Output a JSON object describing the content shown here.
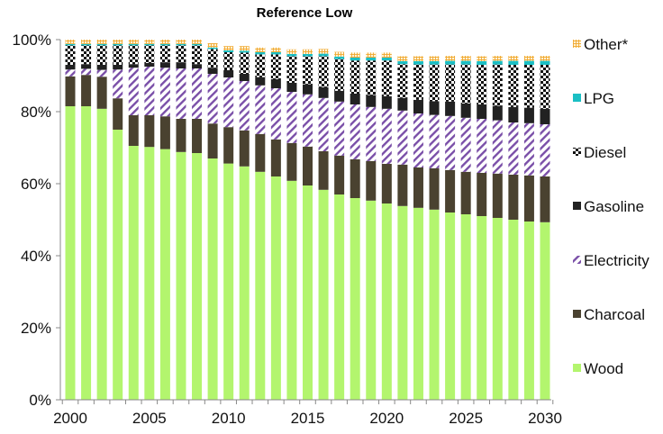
{
  "chart_data": {
    "type": "bar",
    "stacked": true,
    "title": "Reference Low",
    "xlabel": "",
    "ylabel": "",
    "ylim": [
      0,
      100
    ],
    "y_ticks": [
      "0%",
      "20%",
      "40%",
      "60%",
      "80%",
      "100%"
    ],
    "x_tick_labels": [
      "2000",
      "2005",
      "2010",
      "2015",
      "2020",
      "2025",
      "2030"
    ],
    "legend_position": "right",
    "categories": [
      "2000",
      "2001",
      "2002",
      "2003",
      "2004",
      "2005",
      "2006",
      "2007",
      "2008",
      "2009",
      "2010",
      "2011",
      "2012",
      "2013",
      "2014",
      "2015",
      "2016",
      "2017",
      "2018",
      "2019",
      "2020",
      "2021",
      "2022",
      "2023",
      "2024",
      "2025",
      "2026",
      "2027",
      "2028",
      "2029",
      "2030"
    ],
    "series": [
      {
        "name": "Wood",
        "color": "#b3f56e",
        "pattern": "solid",
        "values": [
          81.5,
          81.5,
          80.8,
          75.0,
          70.5,
          70.2,
          69.6,
          68.8,
          68.5,
          67.0,
          65.6,
          64.8,
          63.3,
          62.0,
          60.8,
          59.5,
          58.3,
          57.0,
          56.0,
          55.3,
          54.5,
          53.8,
          53.3,
          52.8,
          52.0,
          51.5,
          51.0,
          50.5,
          50.0,
          49.5,
          49.3
        ]
      },
      {
        "name": "Charcoal",
        "color": "#4a4230",
        "pattern": "solid",
        "values": [
          8.3,
          8.7,
          8.9,
          8.7,
          8.5,
          8.8,
          9.1,
          9.2,
          9.5,
          9.7,
          10.1,
          10.0,
          10.5,
          10.3,
          10.5,
          10.8,
          10.7,
          10.8,
          10.8,
          11.0,
          11.0,
          11.5,
          11.2,
          11.5,
          11.8,
          11.8,
          12.0,
          12.3,
          12.5,
          12.8,
          12.7
        ]
      },
      {
        "name": "Electricity",
        "color": "#7a4fa8",
        "pattern": "hatch",
        "values": [
          1.9,
          1.7,
          1.9,
          8.0,
          13.2,
          13.5,
          13.5,
          14.0,
          14.0,
          13.8,
          13.8,
          13.7,
          13.5,
          14.2,
          14.2,
          14.5,
          14.8,
          15.0,
          15.2,
          15.0,
          15.3,
          15.0,
          15.0,
          14.8,
          15.0,
          15.0,
          15.0,
          14.8,
          14.5,
          14.5,
          14.5
        ]
      },
      {
        "name": "Gasoline",
        "color": "#222222",
        "pattern": "solid",
        "values": [
          1.3,
          1.3,
          1.4,
          1.3,
          1.0,
          1.0,
          1.5,
          1.7,
          1.2,
          1.7,
          2.0,
          2.0,
          2.3,
          2.5,
          2.5,
          2.8,
          3.0,
          3.0,
          3.0,
          3.3,
          3.5,
          3.5,
          3.8,
          3.8,
          4.0,
          4.0,
          4.0,
          4.0,
          4.3,
          4.3,
          4.3
        ]
      },
      {
        "name": "Diesel",
        "color": "#111111",
        "pattern": "checker",
        "values": [
          5.4,
          5.2,
          5.4,
          5.4,
          5.2,
          4.9,
          4.7,
          4.7,
          5.2,
          5.2,
          5.0,
          5.9,
          6.3,
          6.9,
          7.4,
          7.8,
          8.6,
          8.8,
          9.2,
          9.6,
          9.9,
          9.4,
          9.8,
          10.2,
          10.3,
          10.8,
          11.0,
          11.5,
          11.7,
          11.9,
          12.2
        ]
      },
      {
        "name": "LPG",
        "color": "#1bbfc4",
        "pattern": "solid",
        "values": [
          0.4,
          0.4,
          0.4,
          0.4,
          0.4,
          0.4,
          0.4,
          0.4,
          0.4,
          0.4,
          0.5,
          0.5,
          0.6,
          0.6,
          0.6,
          0.6,
          0.7,
          0.7,
          0.8,
          0.8,
          0.8,
          0.8,
          0.9,
          0.9,
          1.0,
          1.0,
          1.0,
          1.0,
          1.1,
          1.1,
          1.1
        ]
      },
      {
        "name": "Other*",
        "color": "#f0a830",
        "pattern": "grid",
        "values": [
          1.2,
          1.2,
          1.2,
          1.2,
          1.2,
          1.2,
          1.2,
          1.2,
          1.2,
          1.2,
          1.2,
          1.3,
          1.3,
          1.3,
          1.3,
          1.3,
          1.3,
          1.3,
          1.4,
          1.4,
          1.4,
          1.4,
          1.4,
          1.4,
          1.4,
          1.4,
          1.4,
          1.4,
          1.4,
          1.4,
          1.4
        ]
      }
    ]
  }
}
